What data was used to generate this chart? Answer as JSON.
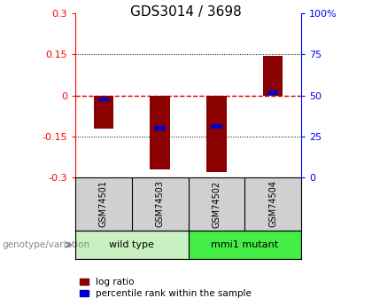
{
  "title": "GDS3014 / 3698",
  "samples": [
    "GSM74501",
    "GSM74503",
    "GSM74502",
    "GSM74504"
  ],
  "log_ratios": [
    -0.12,
    -0.27,
    -0.28,
    0.145
  ],
  "percentile_ranks": [
    47.5,
    30.0,
    31.0,
    51.5
  ],
  "group0_label": "wild type",
  "group0_color": "#c8f0c0",
  "group1_label": "mmi1 mutant",
  "group1_color": "#44ee44",
  "ylim_left": [
    -0.3,
    0.3
  ],
  "ylim_right": [
    0,
    100
  ],
  "yticks_left": [
    -0.3,
    -0.15,
    0,
    0.15,
    0.3
  ],
  "yticks_right": [
    0,
    25,
    50,
    75,
    100
  ],
  "bar_color": "#8B0000",
  "percentile_color": "#0000CC",
  "zero_line_color": "#CC0000",
  "background_color": "#ffffff",
  "label_log_ratio": "log ratio",
  "label_percentile": "percentile rank within the sample",
  "genotype_label": "genotype/variation"
}
